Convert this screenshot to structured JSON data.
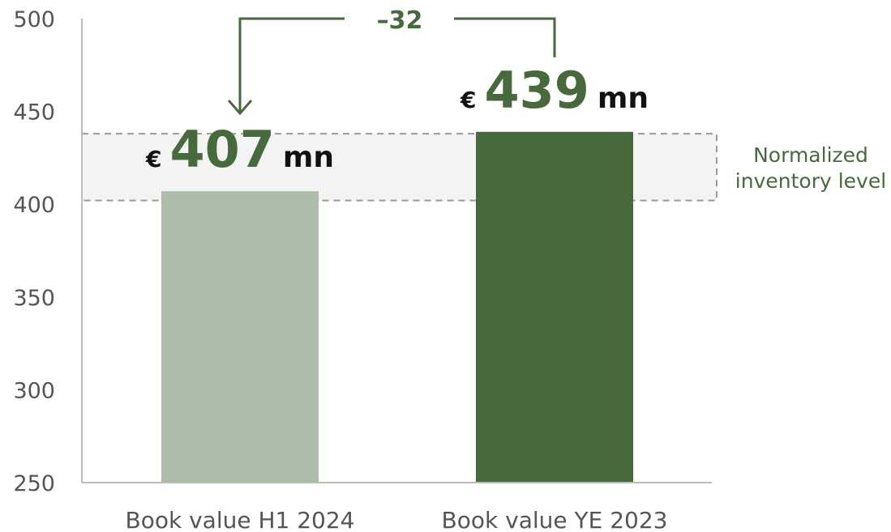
{
  "chart_data": {
    "type": "bar",
    "categories": [
      "Book value H1 2024",
      "Book value YE 2023"
    ],
    "values": [
      407,
      439
    ],
    "value_labels": [
      "€ 407 mn",
      "€ 439 mn"
    ],
    "colors": [
      "#adbca8",
      "#48693d"
    ],
    "ylim": [
      250,
      500
    ],
    "yticks": [
      250,
      300,
      350,
      400,
      450,
      500
    ],
    "grid": false,
    "band": {
      "label": [
        "Normalized",
        "inventory level"
      ],
      "range": [
        402,
        438
      ]
    },
    "difference": {
      "label": "–32"
    }
  }
}
